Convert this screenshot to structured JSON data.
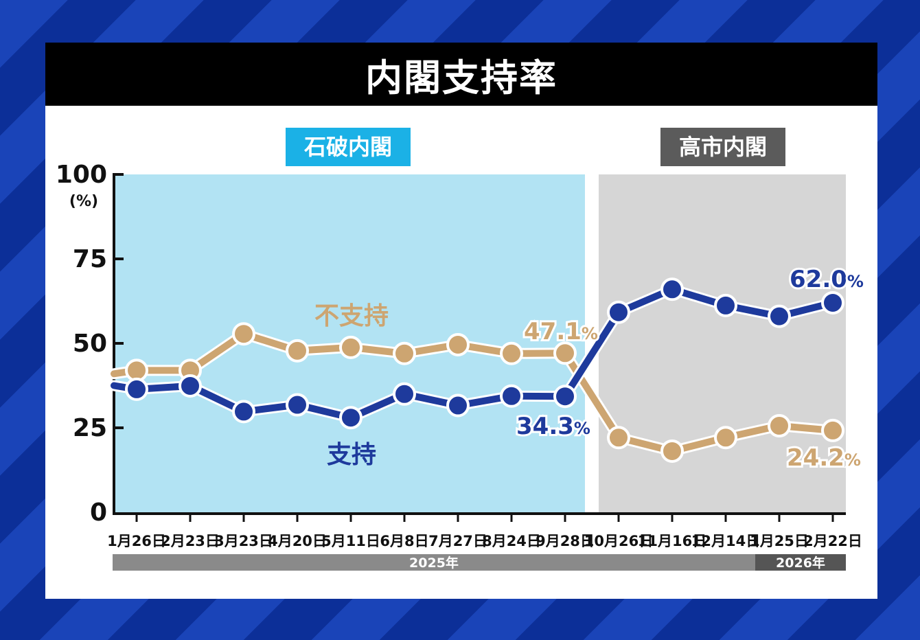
{
  "title": "内閣支持率",
  "colors": {
    "support": "#1e3a9c",
    "non_support": "#cda571",
    "ishiba_bg": "#b2e3f3",
    "ishiba_tag": "#1bb1e6",
    "takaichi_bg": "#d6d6d6",
    "takaichi_tag": "#5b5b5b",
    "year_bar": "#8a8a8a",
    "year_bar_2026": "#555555"
  },
  "eras": [
    {
      "label": "石破内閣",
      "from": "1月26日",
      "to": "9月28日"
    },
    {
      "label": "高市内閣",
      "from": "10月26日",
      "to": "2月22日"
    }
  ],
  "chart_data": {
    "type": "line",
    "title": "内閣支持率",
    "ylabel": "(%)",
    "ylim": [
      0,
      100
    ],
    "yticks": [
      "0",
      "25",
      "50",
      "75",
      "100"
    ],
    "categories": [
      "1月26日",
      "2月23日",
      "3月23日",
      "4月20日",
      "5月11日",
      "6月8日",
      "7月27日",
      "8月24日",
      "9月28日",
      "10月26日",
      "11月16日",
      "12月14日",
      "1月25日",
      "2月22日"
    ],
    "years": [
      {
        "label": "2025年",
        "from": "1月26日",
        "to": "12月14日"
      },
      {
        "label": "2026年",
        "from": "1月25日",
        "to": "2月22日"
      }
    ],
    "series": [
      {
        "name": "不支持",
        "values": [
          42.0,
          42.0,
          52.8,
          47.8,
          48.8,
          47.0,
          49.6,
          47.0,
          47.1,
          22.1,
          18.1,
          22.1,
          25.6,
          24.2
        ],
        "start_value": 41.0
      },
      {
        "name": "支持",
        "values": [
          36.4,
          37.4,
          29.8,
          31.8,
          28.0,
          35.0,
          31.6,
          34.4,
          34.3,
          59.2,
          66.0,
          61.2,
          58.0,
          62.0
        ],
        "start_value": 37.5
      }
    ],
    "data_labels": [
      {
        "series": "不支持",
        "category": "9月28日",
        "value": "47.1",
        "unit": "%"
      },
      {
        "series": "支持",
        "category": "9月28日",
        "value": "34.3",
        "unit": "%"
      },
      {
        "series": "支持",
        "category": "2月22日",
        "value": "62.0",
        "unit": "%"
      },
      {
        "series": "不支持",
        "category": "2月22日",
        "value": "24.2",
        "unit": "%"
      }
    ]
  }
}
